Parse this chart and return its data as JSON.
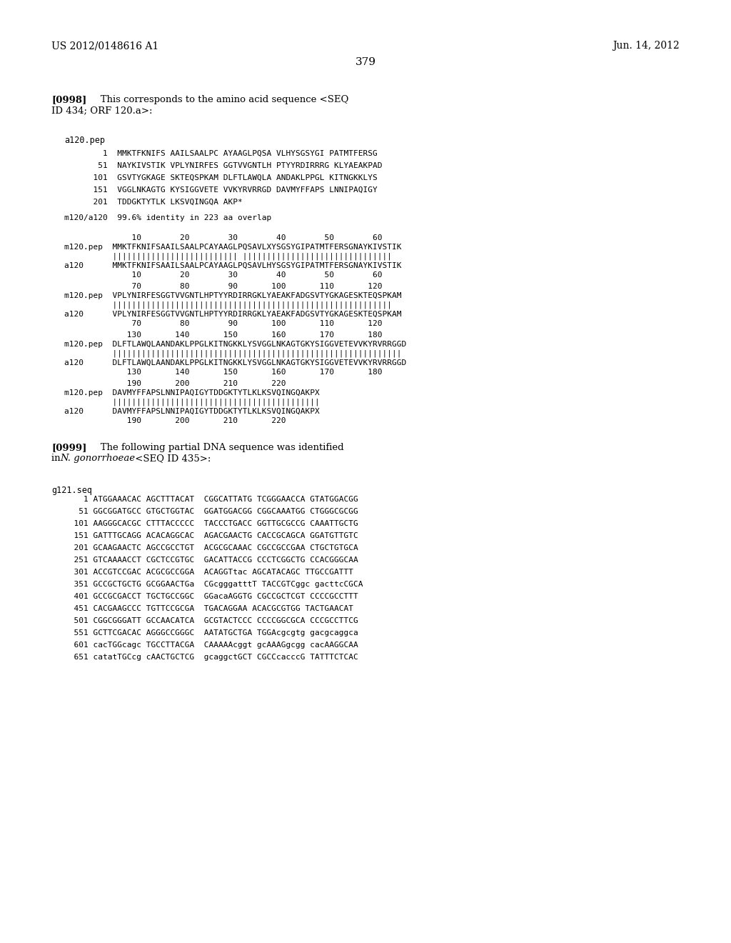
{
  "background_color": "#ffffff",
  "header_left": "US 2012/0148616 A1",
  "header_right": "Jun. 14, 2012",
  "page_number": "379",
  "para0998_line1": "[0998]   This corresponds to the amino acid sequence <SEQ",
  "para0998_line2": "ID 434; ORF 120.a>:",
  "a120_pep_label": "a120.pep",
  "seq_lines": [
    "        1  MMKTFKNIFS AAILSAALPC AYAAGLPQSA VLHYSGSYGI PATMTFERSG",
    "       51  NAYKIVSTIK VPLYNIRFES GGTVVGNTLH PTYYRDIRRRG KLYAEAKPAD",
    "      101  GSVTYGKAGE SKTEQSPKAM DLFTLAWQLA ANDAKLPPGL KITNGKKLYS",
    "      151  VGGLNKAGTG KYSIGGVETE VVKYRVRRGD DAVMYFFAPS LNNIPAQIGY",
    "      201  TDDGKTYTLK LKSVQINGQA AKP*"
  ],
  "identity_line": "m120/a120  99.6% identity in 223 aa overlap",
  "align_blocks": [
    {
      "nums_top": "              10        20        30        40        50        60",
      "m120_line": "m120.pep  MMKTFKNIFSAAILSAALPCAYAAGLPQSAVLXYSGSYGIPATMTFERSGNAYKIVSTIK",
      "bars_line": "          |||||||||||||||||||||||||| |||||||||||||||||||||||||||||||",
      "a120_line": "a120      MMKTFKNIFSAAILSAALPCAYAAGLPQSAVLHYSGSYGIPATMTFERSGNAYKIVSTIK",
      "nums_bot": "              10        20        30        40        50        60"
    },
    {
      "nums_top": "              70        80        90       100       110       120",
      "m120_line": "m120.pep  VPLYNIRFESGGTVVGNTLHPTYYRDIRRGKLYAEAKFADGSVTYGKAGESKTEQSPKAM",
      "bars_line": "          ||||||||||||||||||||||||||||||||||||||||||||||||||||||||||",
      "a120_line": "a120      VPLYNIRFESGGTVVGNTLHPTYYRDIRRGKLYAEAKFADGSVTYGKAGESKTEQSPKAM",
      "nums_bot": "              70        80        90       100       110       120"
    },
    {
      "nums_top": "             130       140       150       160       170       180",
      "m120_line": "m120.pep  DLFTLAWQLAANDAKLPPGLKITNGKKLYSVGGLNKAGTGKYSIGGVETEVVKYRVRRGGD",
      "bars_line": "          ||||||||||||||||||||||||||||||||||||||||||||||||||||||||||||",
      "a120_line": "a120      DLFTLAWQLAANDAKLPPGLKITNGKKLYSVGGLNKAGTGKYSIGGVETEVVKYRVRRGGD",
      "nums_bot": "             130       140       150       160       170       180"
    },
    {
      "nums_top": "             190       200       210       220",
      "m120_line": "m120.pep  DAVMYFFAPSLNNIPAQIGYTDDGKTYTLKLKSVQINGQAKPX",
      "bars_line": "          |||||||||||||||||||||||||||||||||||||||||||",
      "a120_line": "a120      DAVMYFFAPSLNNIPAQIGYTDDGKTYTLKLKSVQINGQAKPX",
      "nums_bot": "             190       200       210       220"
    }
  ],
  "para0999_line1": "[0999]   The following partial DNA sequence was identified",
  "para0999_line2_pre": "in ",
  "para0999_line2_italic": "N. gonorrhoeae",
  "para0999_line2_post": " <SEQ ID 435>:",
  "g121_seq_label": "g121.seq",
  "dna_lines": [
    "    1 ATGGAAACAC AGCTTTACAT  CGGCATTATG TCGGGAACCA GTATGGACGG",
    "   51 GGCGGATGCC GTGCTGGTAC  GGATGGACGG CGGCAAATGG CTGGGCGCGG",
    "  101 AAGGGCACGC CTTTACCCCC  TACCCTGACC GGTTGCGCCG CAAATTGCTG",
    "  151 GATTTGCAGG ACACAGGCAC  AGACGAACTG CACCGCAGCA GGATGTTGTC",
    "  201 GCAAGAACTC AGCCGCCTGT  ACGCGCAAAC CGCCGCCGAA CTGCTGTGCA",
    "  251 GTCAAAACCT CGCTCCGTGC  GACATTACCG CCCTCGGCTG CCACGGGCAA",
    "  301 ACCGTCCGAC ACGCGCCGGA  ACAGGTtac AGCATACAGC TTGCCGATTT",
    "  351 GCCGCTGCTG GCGGAACTGa  CGcgggatttT TACCGTCggc gacttcCGCA",
    "  401 GCCGCGACCT TGCTGCCGGC  GGacaAGGTG CGCCGCTCGT CCCCGCCTTT",
    "  451 CACGAAGCCC TGTTCCGCGA  TGACAGGAA ACACGCGTGG TACTGAACAT",
    "  501 CGGCGGGATT GCCAACATCA  GCGTACTCCC CCCCGGCGCA CCCGCCTTCG",
    "  551 GCTTCGACAC AGGGCCGGGC  AATATGCTGA TGGAcgcgtg gacgcaggca",
    "  601 cacTGGcagc TGCCTTACGA  CAAAAAcggt gcAAAGgcgg cacAAGGCAA",
    "  651 catatTGCcg cAACTGCTCG  gcaggctGCT CGCCcacccG TATTTCTCAC"
  ]
}
